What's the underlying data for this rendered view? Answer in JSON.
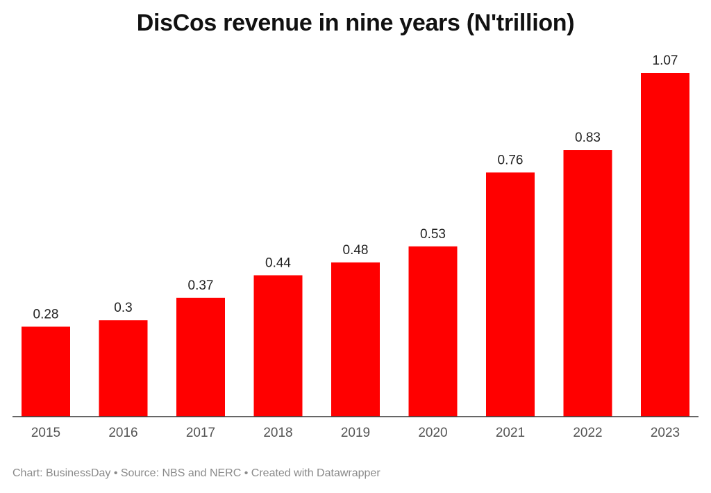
{
  "title": "DisCos revenue in nine years (N'trillion)",
  "footer": "Chart: BusinessDay • Source: NBS and NERC • Created with Datawrapper",
  "colors": {
    "bar": "#ff0000",
    "axis": "#333333",
    "label": "#222222",
    "tick": "#555555"
  },
  "chart_data": {
    "type": "bar",
    "title": "DisCos revenue in nine years (N'trillion)",
    "categories": [
      "2015",
      "2016",
      "2017",
      "2018",
      "2019",
      "2020",
      "2021",
      "2022",
      "2023"
    ],
    "values": [
      0.28,
      0.3,
      0.37,
      0.44,
      0.48,
      0.53,
      0.76,
      0.83,
      1.07
    ],
    "value_labels": [
      "0.28",
      "0.3",
      "0.37",
      "0.44",
      "0.48",
      "0.53",
      "0.76",
      "0.83",
      "1.07"
    ],
    "xlabel": "",
    "ylabel": "",
    "ylim": [
      0,
      1.07
    ],
    "grid": false,
    "legend": "none"
  }
}
